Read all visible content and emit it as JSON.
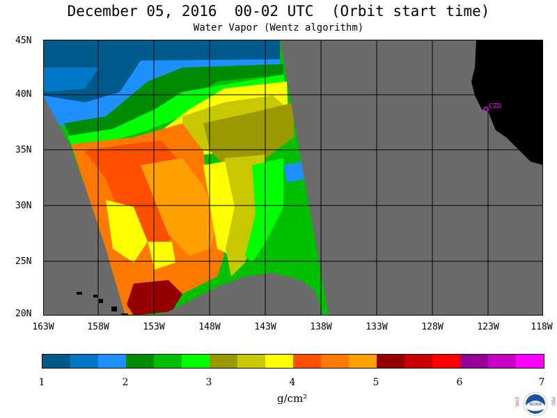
{
  "title": "December 05, 2016  00-02 UTC  (Orbit start time)",
  "subtitle": "Water Vapor (Wentz algorithm)",
  "map": {
    "station_label": "CZD",
    "latitude_labels": [
      "45N",
      "40N",
      "35N",
      "30N",
      "25N",
      "20N"
    ],
    "longitude_labels": [
      "163W",
      "158W",
      "153W",
      "148W",
      "143W",
      "138W",
      "133W",
      "128W",
      "123W",
      "118W"
    ]
  },
  "colorbar": {
    "colors": [
      "#005a8c",
      "#0078c8",
      "#1e90ff",
      "#008c00",
      "#00c000",
      "#00ff00",
      "#9a9a00",
      "#c8c800",
      "#ffff00",
      "#ff5000",
      "#ff7800",
      "#ffa000",
      "#960000",
      "#c80000",
      "#ff0000",
      "#960096",
      "#c800c8",
      "#ff00ff"
    ],
    "tick_labels": [
      "1",
      "2",
      "3",
      "4",
      "5",
      "6",
      "7"
    ],
    "unit": "g/cm²"
  },
  "logo": {
    "left_letters": "ESRL",
    "right_letters": "PSD",
    "center_text": "NOAA"
  }
}
